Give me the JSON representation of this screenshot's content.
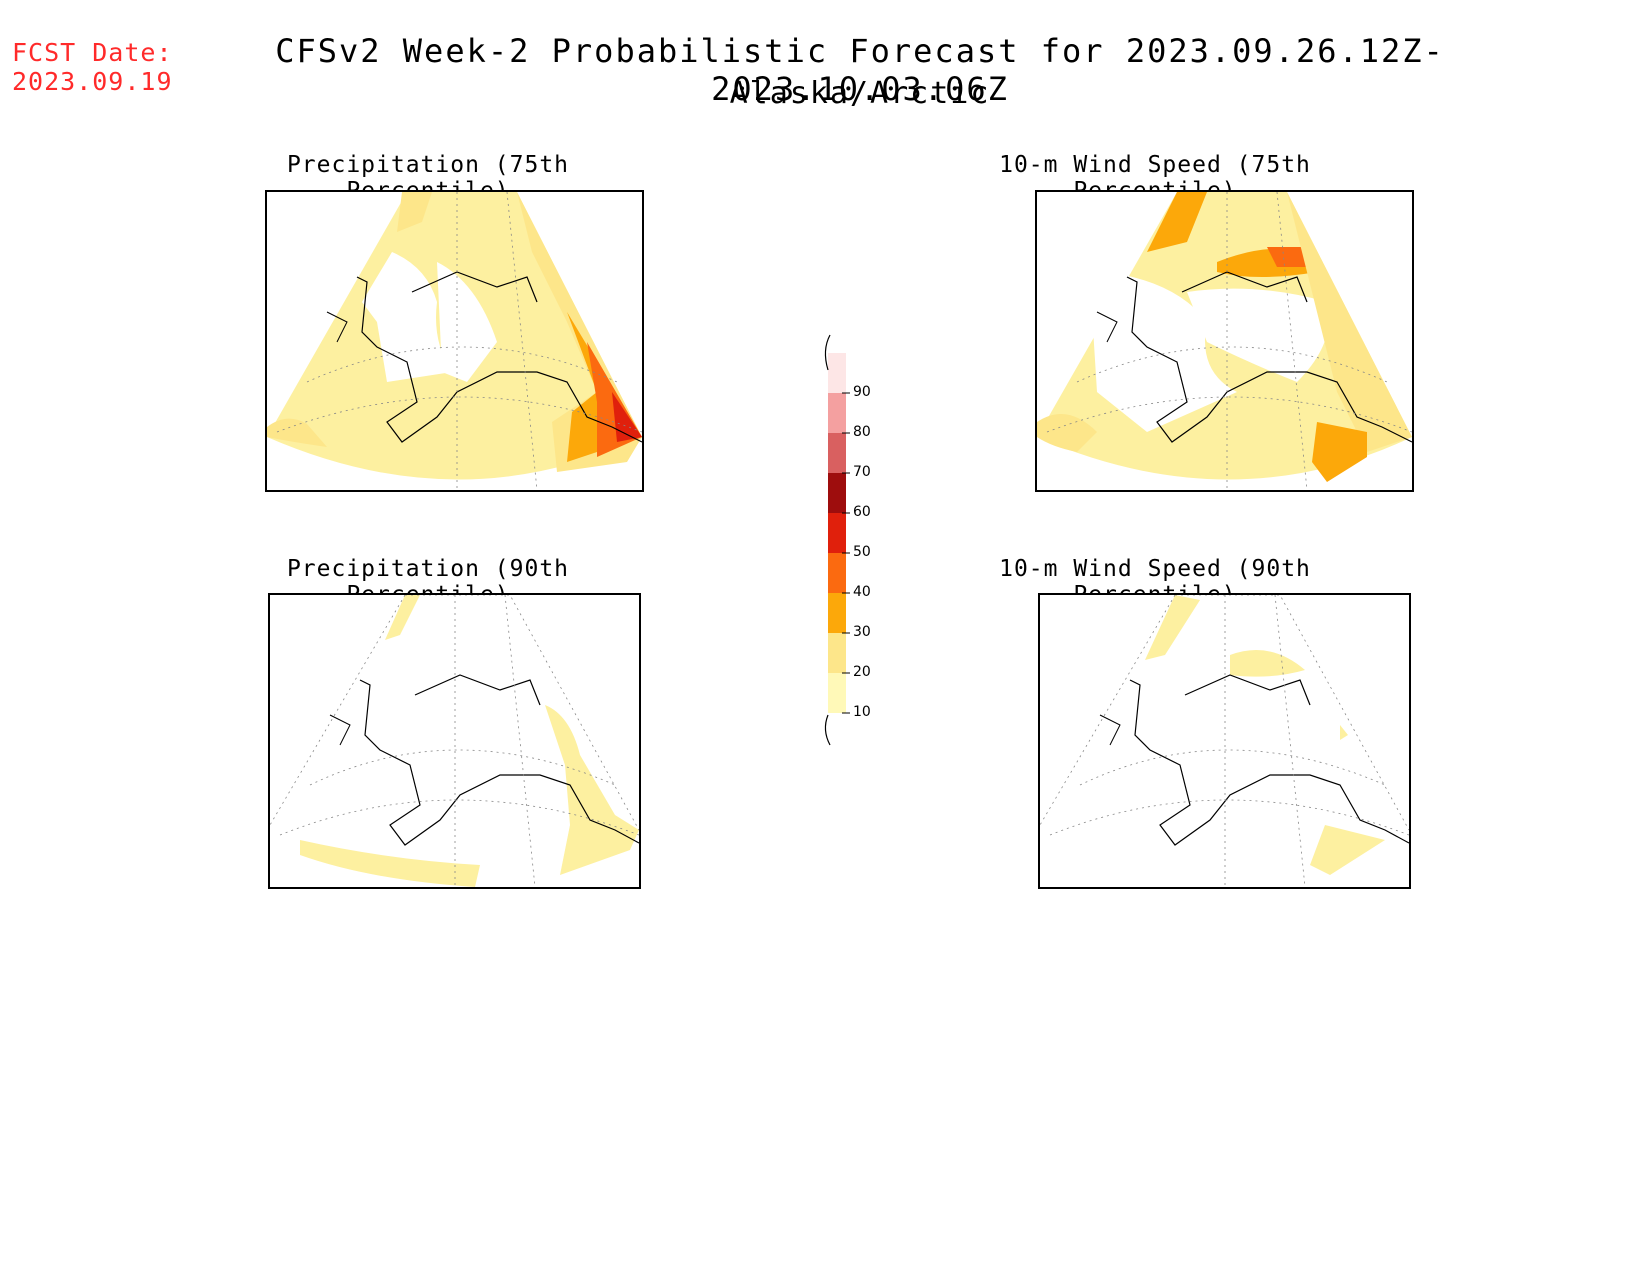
{
  "header": {
    "fcst_label": "FCST Date:",
    "fcst_date": "2023.09.19",
    "title": "CFSv2 Week-2 Probabilistic Forecast for 2023.09.26.12Z-2023.10.03.06Z",
    "subtitle": "Alaska/Arctic"
  },
  "panels": [
    {
      "title": "Precipitation (75th Percentile)"
    },
    {
      "title": "10-m Wind Speed (75th Percentile)"
    },
    {
      "title": "Precipitation (90th Percentile)"
    },
    {
      "title": "10-m Wind Speed (90th Percentile)"
    }
  ],
  "colorbar": {
    "levels": [
      "10",
      "20",
      "30",
      "40",
      "50",
      "60",
      "70",
      "80",
      "90"
    ],
    "colors": [
      "#fff9b8",
      "#fde68a",
      "#fca80a",
      "#fb6a10",
      "#e0200c",
      "#9e0d0d",
      "#d96060",
      "#f4a0a0",
      "#fde6e6"
    ]
  }
}
